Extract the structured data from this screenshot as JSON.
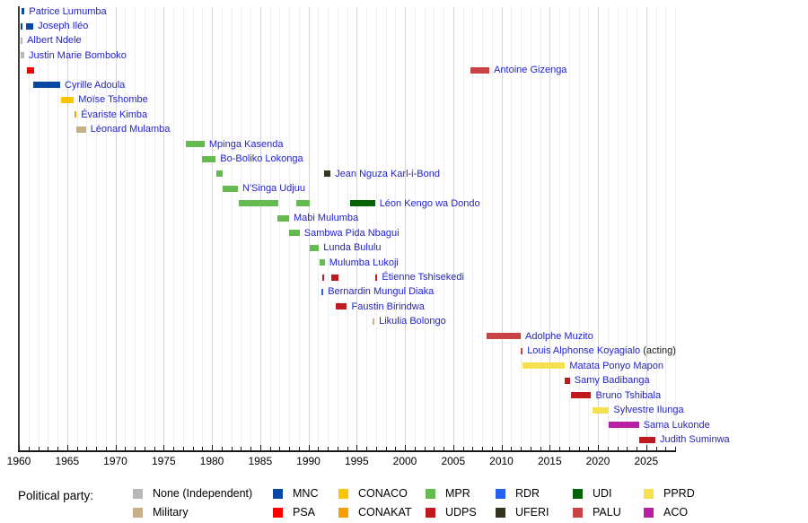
{
  "ui_colors": {
    "link": "#2323cd",
    "axis": "#1a1a1a",
    "grid": "#eeeeee",
    "grid_major": "#d6d6d6"
  },
  "legend": {
    "title": "Political party:",
    "pairs": [
      {
        "top": {
          "party": "None",
          "label": "None (Independent)"
        },
        "bottom": {
          "party": "Military",
          "label": "Military"
        }
      },
      {
        "top": {
          "party": "MNC",
          "label": "MNC"
        },
        "bottom": {
          "party": "PSA",
          "label": "PSA"
        }
      },
      {
        "top": {
          "party": "CONACO",
          "label": "CONACO"
        },
        "bottom": {
          "party": "CONAKAT",
          "label": "CONAKAT"
        }
      },
      {
        "top": {
          "party": "MPR",
          "label": "MPR"
        },
        "bottom": {
          "party": "UDPS",
          "label": "UDPS"
        }
      },
      {
        "top": {
          "party": "RDR",
          "label": "RDR"
        },
        "bottom": {
          "party": "UFERI",
          "label": "UFERI"
        }
      },
      {
        "top": {
          "party": "UDI",
          "label": "UDI"
        },
        "bottom": {
          "party": "PALU",
          "label": "PALU"
        }
      },
      {
        "top": {
          "party": "PPRD",
          "label": "PPRD"
        },
        "bottom": {
          "party": "ACO",
          "label": "ACO"
        }
      }
    ]
  },
  "chart_data": {
    "type": "timeline",
    "title": "",
    "x_axis": {
      "min": 1960,
      "grid_end": 2028,
      "tick_step": 1,
      "label_step": 5,
      "labels": [
        "1960",
        "1965",
        "1970",
        "1975",
        "1980",
        "1985",
        "1990",
        "1995",
        "2000",
        "2005",
        "2010",
        "2015",
        "2020",
        "2025"
      ]
    },
    "party_colors": {
      "None": "#b8b8b8",
      "Military": "#c7b089",
      "MNC": "#0947a6",
      "PSA": "#f80000",
      "CONACO": "#fdc500",
      "CONAKAT": "#f99d00",
      "MPR": "#66bb50",
      "UDPS": "#c01a1e",
      "RDR": "#2561ed",
      "UFERI": "#35341f",
      "UDI": "#056305",
      "PALU": "#c94345",
      "PPRD": "#f5e04e",
      "ACO": "#ba20a5"
    },
    "people": [
      {
        "name": "Patrice Lumumba",
        "bars": [
          {
            "party": "MNC",
            "start": 1960.28,
            "end": 1960.6
          }
        ]
      },
      {
        "name": "Joseph Iléo",
        "bars": [
          {
            "party": "MNC",
            "start": 1960.2,
            "end": 1960.38
          },
          {
            "party": "MNC",
            "start": 1960.74,
            "end": 1961.5
          }
        ]
      },
      {
        "name": "Albert Ndele",
        "bars": [
          {
            "party": "None",
            "start": 1960.2,
            "end": 1960.38
          }
        ]
      },
      {
        "name": "Justin Marie Bomboko",
        "bars": [
          {
            "party": "None",
            "start": 1960.2,
            "end": 1960.56
          }
        ]
      },
      {
        "name": "Antoine Gizenga",
        "bars": [
          {
            "party": "PSA",
            "start": 1960.84,
            "end": 1961.58
          },
          {
            "party": "PALU",
            "start": 2006.8,
            "end": 2008.75
          }
        ]
      },
      {
        "name": "Cyrille Adoula",
        "bars": [
          {
            "party": "MNC",
            "start": 1961.5,
            "end": 1964.28
          }
        ]
      },
      {
        "name": "Moïse Tshombe",
        "bars": [
          {
            "party": "CONACO",
            "start": 1964.37,
            "end": 1965.7
          }
        ]
      },
      {
        "name": "Évariste Kimba",
        "bars": [
          {
            "party": "CONAKAT",
            "start": 1965.77,
            "end": 1965.97
          }
        ]
      },
      {
        "name": "Léonard Mulamba",
        "bars": [
          {
            "party": "Military",
            "start": 1965.97,
            "end": 1966.95
          }
        ]
      },
      {
        "name": "Mpinga Kasenda",
        "bars": [
          {
            "party": "MPR",
            "start": 1977.3,
            "end": 1979.25
          }
        ]
      },
      {
        "name": "Bo-Boliko Lokonga",
        "bars": [
          {
            "party": "MPR",
            "start": 1978.95,
            "end": 1980.4
          }
        ]
      },
      {
        "name": "Jean Nguza Karl-i-Bond",
        "bars": [
          {
            "party": "MPR",
            "start": 1980.45,
            "end": 1981.1
          },
          {
            "party": "UFERI",
            "start": 1991.6,
            "end": 1992.3
          }
        ]
      },
      {
        "name": "N'Singa Udjuu",
        "bars": [
          {
            "party": "MPR",
            "start": 1981.15,
            "end": 1982.7
          }
        ]
      },
      {
        "name": "Léon Kengo wa Dondo",
        "bars": [
          {
            "party": "MPR",
            "start": 1982.75,
            "end": 1986.9
          },
          {
            "party": "MPR",
            "start": 1988.7,
            "end": 1990.1
          },
          {
            "party": "UDI",
            "start": 1994.3,
            "end": 1996.9
          }
        ]
      },
      {
        "name": "Mabi Mulumba",
        "bars": [
          {
            "party": "MPR",
            "start": 1986.8,
            "end": 1988.0
          }
        ]
      },
      {
        "name": "Sambwa Pida Nbagui",
        "bars": [
          {
            "party": "MPR",
            "start": 1988.0,
            "end": 1989.1
          }
        ]
      },
      {
        "name": "Lunda Bululu",
        "bars": [
          {
            "party": "MPR",
            "start": 1990.1,
            "end": 1991.1
          }
        ]
      },
      {
        "name": "Mulumba Lukoji",
        "bars": [
          {
            "party": "MPR",
            "start": 1991.15,
            "end": 1991.7
          }
        ]
      },
      {
        "name": "Étienne Tshisekedi",
        "bars": [
          {
            "party": "UDPS",
            "start": 1991.4,
            "end": 1991.6
          },
          {
            "party": "UDPS",
            "start": 1992.35,
            "end": 1993.1
          },
          {
            "party": "UDPS",
            "start": 1996.95,
            "end": 1997.15
          }
        ]
      },
      {
        "name": "Bernardin Mungul Diaka",
        "bars": [
          {
            "party": "RDR",
            "start": 1991.35,
            "end": 1991.55
          }
        ]
      },
      {
        "name": "Faustin Birindwa",
        "bars": [
          {
            "party": "UDPS",
            "start": 1992.85,
            "end": 1994.0
          }
        ]
      },
      {
        "name": "Likulia Bolongo",
        "bars": [
          {
            "party": "Military",
            "start": 1996.65,
            "end": 1996.85
          }
        ]
      },
      {
        "name": "Adolphe Muzito",
        "bars": [
          {
            "party": "PALU",
            "start": 2008.45,
            "end": 2012.0
          }
        ]
      },
      {
        "name": "Louis Alphonse Koyagialo",
        "suffix": " (acting)",
        "bars": [
          {
            "party": "PALU",
            "start": 2012.0,
            "end": 2012.2
          }
        ]
      },
      {
        "name": "Matata Ponyo Mapon",
        "bars": [
          {
            "party": "PPRD",
            "start": 2012.2,
            "end": 2016.6
          }
        ]
      },
      {
        "name": "Samy Badibanga",
        "bars": [
          {
            "party": "UDPS",
            "start": 2016.6,
            "end": 2017.1
          }
        ]
      },
      {
        "name": "Bruno Tshibala",
        "bars": [
          {
            "party": "UDPS",
            "start": 2017.2,
            "end": 2019.3
          }
        ]
      },
      {
        "name": "Sylvestre Ilunga",
        "bars": [
          {
            "party": "PPRD",
            "start": 2019.4,
            "end": 2021.15
          }
        ]
      },
      {
        "name": "Sama Lukonde",
        "bars": [
          {
            "party": "ACO",
            "start": 2021.15,
            "end": 2024.25
          }
        ]
      },
      {
        "name": "Judith Suminwa",
        "bars": [
          {
            "party": "UDPS",
            "start": 2024.3,
            "end": 2025.95
          }
        ]
      }
    ]
  }
}
